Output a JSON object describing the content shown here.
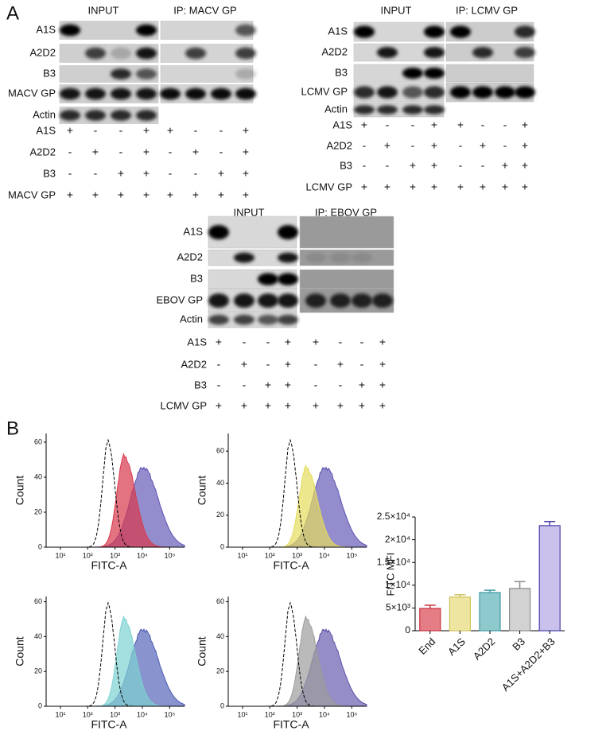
{
  "panel_a": {
    "label": "A",
    "blots": [
      {
        "headers": [
          "INPUT",
          "IP: MACV GP"
        ],
        "rows": [
          "A1S",
          "A2D2",
          "B3",
          "MACV GP",
          "Actin"
        ],
        "conditions": [
          {
            "label": "A1S",
            "signs": [
              "+",
              "-",
              "-",
              "+",
              "+",
              "-",
              "-",
              "+"
            ]
          },
          {
            "label": "A2D2",
            "signs": [
              "-",
              "+",
              "-",
              "+",
              "-",
              "+",
              "-",
              "+"
            ]
          },
          {
            "label": "B3",
            "signs": [
              "-",
              "-",
              "+",
              "+",
              "-",
              "-",
              "+",
              "+"
            ]
          },
          {
            "label": "MACV GP",
            "signs": [
              "+",
              "+",
              "+",
              "+",
              "+",
              "+",
              "+",
              "+"
            ]
          }
        ]
      },
      {
        "headers": [
          "INPUT",
          "IP: LCMV GP"
        ],
        "rows": [
          "A1S",
          "A2D2",
          "B3",
          "LCMV GP",
          "Actin"
        ],
        "conditions": [
          {
            "label": "A1S",
            "signs": [
              "+",
              "-",
              "-",
              "+",
              "+",
              "-",
              "-",
              "+"
            ]
          },
          {
            "label": "A2D2",
            "signs": [
              "-",
              "+",
              "-",
              "+",
              "-",
              "+",
              "-",
              "+"
            ]
          },
          {
            "label": "B3",
            "signs": [
              "-",
              "-",
              "+",
              "+",
              "-",
              "-",
              "+",
              "+"
            ]
          },
          {
            "label": "LCMV GP",
            "signs": [
              "+",
              "+",
              "+",
              "+",
              "+",
              "+",
              "+",
              "+"
            ]
          }
        ]
      },
      {
        "headers": [
          "INPUT",
          "IP: EBOV GP"
        ],
        "rows": [
          "A1S",
          "A2D2",
          "B3",
          "EBOV GP",
          "Actin"
        ],
        "conditions": [
          {
            "label": "A1S",
            "signs": [
              "+",
              "-",
              "-",
              "+",
              "+",
              "-",
              "-",
              "+"
            ]
          },
          {
            "label": "A2D2",
            "signs": [
              "-",
              "+",
              "-",
              "+",
              "-",
              "+",
              "-",
              "+"
            ]
          },
          {
            "label": "B3",
            "signs": [
              "-",
              "-",
              "+",
              "+",
              "-",
              "-",
              "+",
              "+"
            ]
          },
          {
            "label": "LCMV GP",
            "signs": [
              "+",
              "+",
              "+",
              "+",
              "+",
              "+",
              "+",
              "+"
            ]
          }
        ]
      }
    ]
  },
  "panel_b": {
    "label": "B",
    "histograms": [
      {
        "x_label": "FITC-A",
        "y_label": "Count",
        "xscale": "log",
        "xlim": [
          3,
          350000
        ],
        "ylim": [
          0,
          65
        ],
        "yticks": [
          0,
          20,
          40,
          60
        ],
        "xticks": [
          {
            "value": 10,
            "label": "10¹"
          },
          {
            "value": 100,
            "label": "10²"
          },
          {
            "value": 1000,
            "label": "10³"
          },
          {
            "value": 10000,
            "label": "10⁴"
          },
          {
            "value": 100000,
            "label": "10⁵"
          }
        ],
        "colors": [
          "#d8384c",
          "#5b50b2"
        ]
      },
      {
        "x_label": "FITC-A",
        "y_label": "Count",
        "xscale": "log",
        "xlim": [
          3,
          350000
        ],
        "ylim": [
          0,
          71
        ],
        "yticks": [
          0,
          20,
          40,
          60
        ],
        "xticks": [
          {
            "value": 10,
            "label": "10¹"
          },
          {
            "value": 100,
            "label": "10²"
          },
          {
            "value": 1000,
            "label": "10³"
          },
          {
            "value": 10000,
            "label": "10⁴"
          },
          {
            "value": 100000,
            "label": "10⁵"
          }
        ],
        "colors": [
          "#e4dc5c",
          "#5b50b2"
        ]
      },
      {
        "x_label": "FITC-A",
        "y_label": "Count",
        "xscale": "log",
        "xlim": [
          3,
          350000
        ],
        "ylim": [
          0,
          63
        ],
        "yticks": [
          0,
          20,
          40,
          60
        ],
        "xticks": [
          {
            "value": 10,
            "label": "10¹"
          },
          {
            "value": 100,
            "label": "10²"
          },
          {
            "value": 1000,
            "label": "10³"
          },
          {
            "value": 10000,
            "label": "10⁴"
          },
          {
            "value": 100000,
            "label": "10⁵"
          }
        ],
        "colors": [
          "#7ed2d2",
          "#4a5ab4"
        ]
      },
      {
        "x_label": "FITC-A",
        "y_label": "Count",
        "xscale": "log",
        "xlim": [
          3,
          350000
        ],
        "ylim": [
          0,
          63
        ],
        "yticks": [
          0,
          20,
          40,
          60
        ],
        "xticks": [
          {
            "value": 10,
            "label": "10¹"
          },
          {
            "value": 100,
            "label": "10²"
          },
          {
            "value": 1000,
            "label": "10³"
          },
          {
            "value": 10000,
            "label": "10⁴"
          },
          {
            "value": 100000,
            "label": "10⁵"
          }
        ],
        "colors": [
          "#9c9c9c",
          "#5b50a8"
        ]
      }
    ]
  },
  "chart_data": {
    "type": "bar",
    "y_label": "FITC MFI",
    "categories": [
      "End",
      "A1S",
      "A2D2",
      "B3",
      "A1S+A2D2+B3"
    ],
    "values": [
      4900,
      7400,
      8400,
      9300,
      23100
    ],
    "errors": [
      700,
      500,
      500,
      1500,
      900
    ],
    "colors": [
      "#e47d86",
      "#ede5a0",
      "#8ec9cd",
      "#d2d2d2",
      "#c9c1ec"
    ],
    "edge_colors": [
      "#c8323f",
      "#cfc35a",
      "#3f9aa3",
      "#8a8a8a",
      "#4a40a8"
    ],
    "ylim": [
      0,
      25000
    ],
    "yticks": [
      0,
      {
        "value": 5000,
        "label": "5×10³"
      },
      {
        "value": 10000,
        "label": "1×10⁴"
      },
      {
        "value": 15000,
        "label": "1.5×10⁴"
      },
      {
        "value": 20000,
        "label": "2×10⁴"
      },
      {
        "value": 25000,
        "label": "2.5×10⁴"
      }
    ]
  }
}
